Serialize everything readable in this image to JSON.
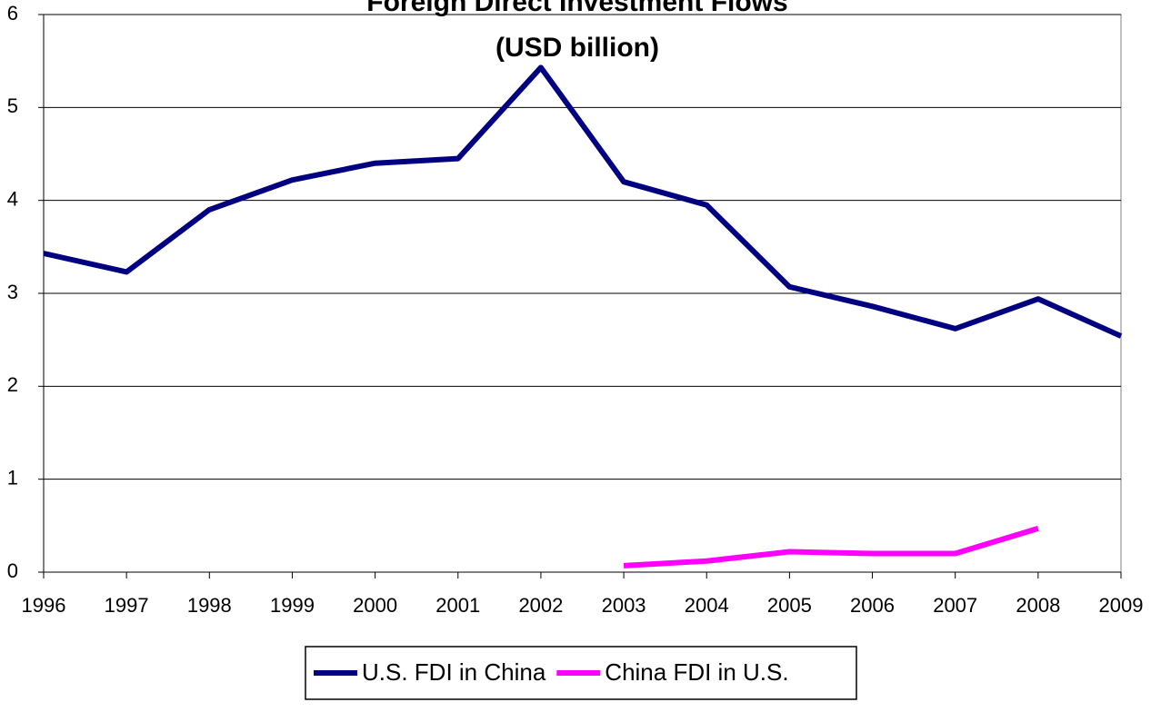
{
  "chart_data": {
    "type": "line",
    "title": [
      "Foreign Direct Investment Flows",
      "(USD billion)"
    ],
    "x": [
      1996,
      1997,
      1998,
      1999,
      2000,
      2001,
      2002,
      2003,
      2004,
      2005,
      2006,
      2007,
      2008,
      2009
    ],
    "series": [
      {
        "name": "U.S. FDI in China",
        "color": "#000080",
        "values": [
          3.43,
          3.23,
          3.9,
          4.22,
          4.4,
          4.45,
          5.43,
          4.2,
          3.95,
          3.07,
          2.86,
          2.62,
          2.94,
          2.54
        ]
      },
      {
        "name": "China FDI in U.S.",
        "color": "#ff00ff",
        "values": [
          null,
          null,
          null,
          null,
          null,
          null,
          null,
          0.07,
          0.12,
          0.22,
          0.2,
          0.2,
          0.47,
          null
        ]
      }
    ],
    "xlim": [
      1996,
      2009
    ],
    "xticks": [
      1996,
      1997,
      1998,
      1999,
      2000,
      2001,
      2002,
      2003,
      2004,
      2005,
      2006,
      2007,
      2008,
      2009
    ],
    "ylim": [
      0,
      6
    ],
    "yticks": [
      0,
      1,
      2,
      3,
      4,
      5,
      6
    ],
    "grid": true,
    "legend": "bottom"
  }
}
